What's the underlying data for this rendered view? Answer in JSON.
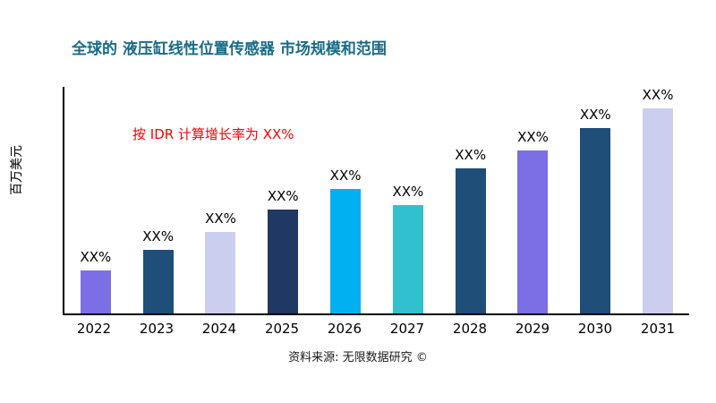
{
  "title": "全球的 液压缸线性位置传感器 市场规模和范围",
  "annotation": "按 IDR 计算增长率为 XX%",
  "ylabel": "百万美元",
  "source": "资料来源: 无限数据研究 ©",
  "colors": {
    "title": "#176B87",
    "annotation": "#FF0000",
    "axis": "#000000"
  },
  "chart_data": {
    "type": "bar",
    "title": "全球的 液压缸线性位置传感器 市场规模和范围",
    "xlabel": "",
    "ylabel": "百万美元",
    "ylim": [
      0,
      100
    ],
    "grid": false,
    "legend": null,
    "categories": [
      "2022",
      "2023",
      "2024",
      "2025",
      "2026",
      "2027",
      "2028",
      "2029",
      "2030",
      "2031"
    ],
    "values": [
      19,
      28,
      36,
      46,
      55,
      48,
      64,
      72,
      82,
      91
    ],
    "bar_labels": [
      "XX%",
      "XX%",
      "XX%",
      "XX%",
      "XX%",
      "XX%",
      "XX%",
      "XX%",
      "XX%",
      "XX%"
    ],
    "colors": [
      "#7C6EE4",
      "#1F4E79",
      "#CCCEF0",
      "#1F3864",
      "#00B0F0",
      "#31C0CE",
      "#1F4E79",
      "#7C6EE4",
      "#1F4E79",
      "#CCCEF0"
    ]
  }
}
